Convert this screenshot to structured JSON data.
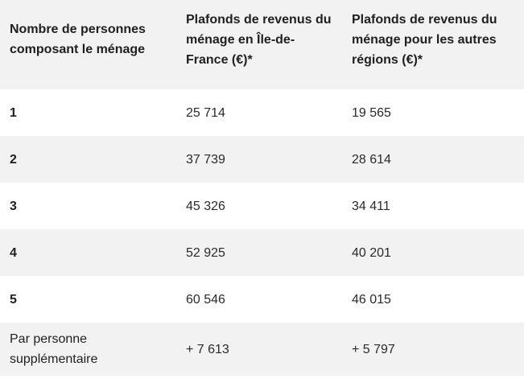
{
  "table": {
    "headers": [
      "Nombre de personnes composant le ménage",
      "Plafonds de revenus du ménage en Île-de-France (€)*",
      "Plafonds de revenus du ménage pour les autres régions (€)*"
    ],
    "rows": [
      [
        "1",
        "25 714",
        "19 565"
      ],
      [
        "2",
        "37 739",
        "28 614"
      ],
      [
        "3",
        "45 326",
        "34 411"
      ],
      [
        "4",
        "52 925",
        "40 201"
      ],
      [
        "5",
        "60 546",
        "46 015"
      ],
      [
        "Par personne supplémentaire",
        "+ 7 613",
        "+ 5 797"
      ]
    ]
  },
  "colors": {
    "header_background": "#f2f2f2",
    "stripe_background": "#f2f2f2",
    "text": "#1f1f1f"
  }
}
